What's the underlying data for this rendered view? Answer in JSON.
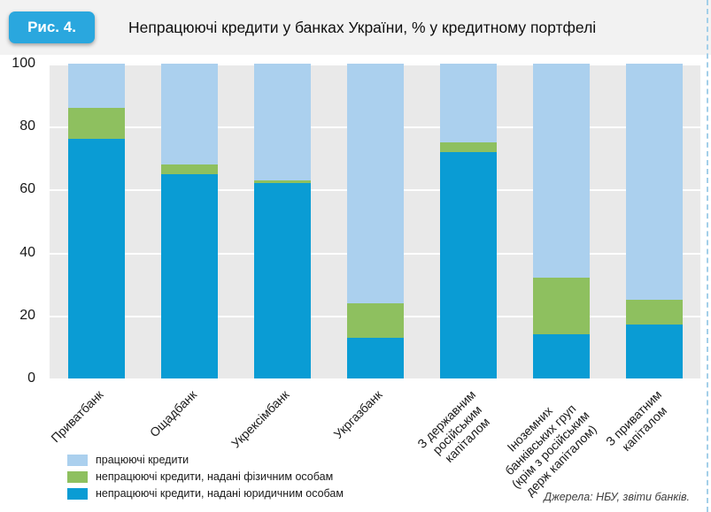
{
  "header": {
    "figure_label": "Рис. 4.",
    "title": "Непрацюючі кредити у банках України, % у кредитному портфелі"
  },
  "chart_data": {
    "type": "bar",
    "stacked": true,
    "title": "Непрацюючі кредити у банках України, % у кредитному портфелі",
    "categories": [
      "Приватбанк",
      "Ощадбанк",
      "Укрексімбанк",
      "Укргазбанк",
      "З державним\nросійським\nкапіталом",
      "Іноземних\nбанківських груп\n(крім з російським\nдерж капіталом)",
      "З приватним\nкапіталом"
    ],
    "series": [
      {
        "name": "непрацюючі кредити, надані юридичним особам",
        "color": "#0a9cd4",
        "values": [
          76,
          65,
          62,
          13,
          72,
          14,
          17
        ]
      },
      {
        "name": "непрацюючі кредити, надані фізичним особам",
        "color": "#8ec05f",
        "values": [
          10,
          3,
          1,
          11,
          3,
          18,
          8
        ]
      },
      {
        "name": "працюючі кредити",
        "color": "#abd0ee",
        "values": [
          14,
          32,
          37,
          76,
          25,
          68,
          75
        ]
      }
    ],
    "ylim": [
      0,
      100
    ],
    "yticks": [
      0,
      20,
      40,
      60,
      80,
      100
    ],
    "grid": true,
    "legend_position": "bottom-left"
  },
  "legend": [
    {
      "label": "працюючі кредити",
      "color": "#abd0ee"
    },
    {
      "label": "непрацюючі кредити, надані фізичним особам",
      "color": "#8ec05f"
    },
    {
      "label": "непрацюючі кредити, надані юридичним особам",
      "color": "#0a9cd4"
    }
  ],
  "source": "Джерела: НБУ, звіти банків."
}
